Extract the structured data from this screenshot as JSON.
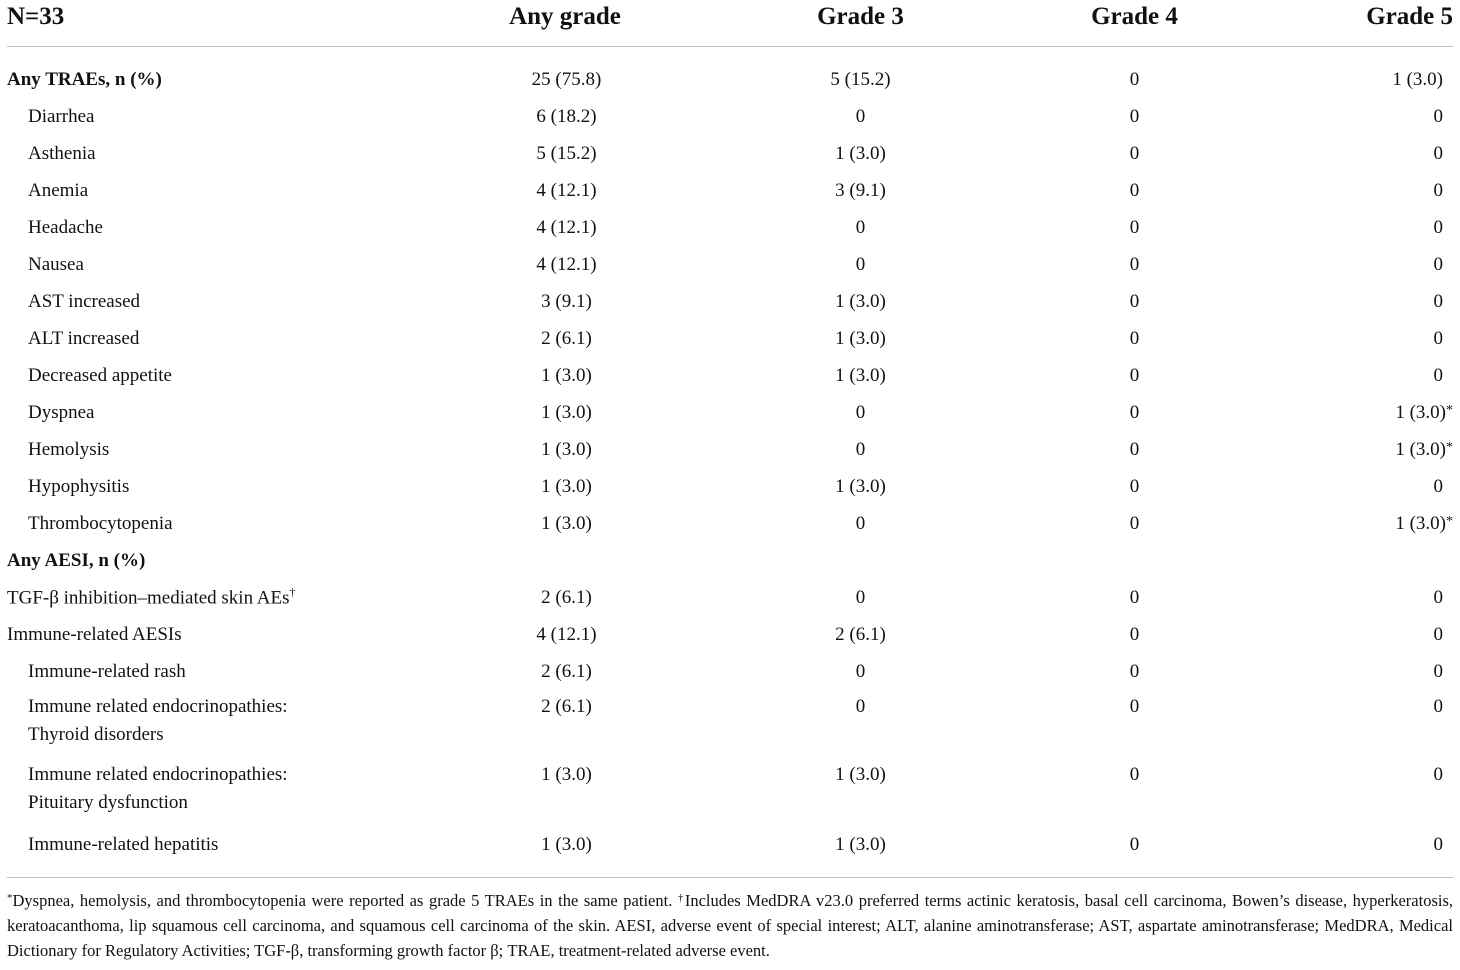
{
  "header": {
    "n_label": "N=33",
    "any_grade": "Any grade",
    "grade3": "Grade 3",
    "grade4": "Grade 4",
    "grade5": "Grade 5"
  },
  "rows": [
    {
      "label": "Any TRAEs, n (%)",
      "any": "25 (75.8)",
      "g3": "5 (15.2)",
      "g4": "0",
      "g5": "1 (3.0)"
    },
    {
      "label": "Diarrhea",
      "any": "6 (18.2)",
      "g3": "0",
      "g4": "0",
      "g5": "0"
    },
    {
      "label": "Asthenia",
      "any": "5 (15.2)",
      "g3": "1 (3.0)",
      "g4": "0",
      "g5": "0"
    },
    {
      "label": "Anemia",
      "any": "4 (12.1)",
      "g3": "3 (9.1)",
      "g4": "0",
      "g5": "0"
    },
    {
      "label": "Headache",
      "any": "4 (12.1)",
      "g3": "0",
      "g4": "0",
      "g5": "0"
    },
    {
      "label": "Nausea",
      "any": "4 (12.1)",
      "g3": "0",
      "g4": "0",
      "g5": "0"
    },
    {
      "label": "AST increased",
      "any": "3 (9.1)",
      "g3": "1 (3.0)",
      "g4": "0",
      "g5": "0"
    },
    {
      "label": "ALT increased",
      "any": "2 (6.1)",
      "g3": "1 (3.0)",
      "g4": "0",
      "g5": "0"
    },
    {
      "label": "Decreased appetite",
      "any": "1 (3.0)",
      "g3": "1 (3.0)",
      "g4": "0",
      "g5": "0"
    },
    {
      "label": "Dyspnea",
      "any": "1 (3.0)",
      "g3": "0",
      "g4": "0",
      "g5": "1 (3.0)",
      "g5_mark": "*"
    },
    {
      "label": "Hemolysis",
      "any": "1 (3.0)",
      "g3": "0",
      "g4": "0",
      "g5": "1 (3.0)",
      "g5_mark": "*"
    },
    {
      "label": "Hypophysitis",
      "any": "1 (3.0)",
      "g3": "1 (3.0)",
      "g4": "0",
      "g5": "0"
    },
    {
      "label": "Thrombocytopenia",
      "any": "1 (3.0)",
      "g3": "0",
      "g4": "0",
      "g5": "1 (3.0)",
      "g5_mark": "*"
    },
    {
      "label": "Any AESI, n (%)",
      "any": "",
      "g3": "",
      "g4": "",
      "g5": ""
    },
    {
      "label": "TGF-β inhibition–mediated skin AEs",
      "label_mark": "†",
      "any": "2 (6.1)",
      "g3": "0",
      "g4": "0",
      "g5": "0"
    },
    {
      "label": "Immune-related AESIs",
      "any": "4 (12.1)",
      "g3": "2 (6.1)",
      "g4": "0",
      "g5": "0"
    },
    {
      "label": "Immune-related rash",
      "any": "2 (6.1)",
      "g3": "0",
      "g4": "0",
      "g5": "0"
    },
    {
      "label_line1": "Immune related endocrinopathies:",
      "label_line2": "Thyroid disorders",
      "any": "2 (6.1)",
      "g3": "0",
      "g4": "0",
      "g5": "0"
    },
    {
      "label_line1": "Immune related endocrinopathies:",
      "label_line2": "Pituitary dysfunction",
      "any": "1 (3.0)",
      "g3": "1 (3.0)",
      "g4": "0",
      "g5": "0"
    },
    {
      "label": "Immune-related hepatitis",
      "any": "1 (3.0)",
      "g3": "1 (3.0)",
      "g4": "0",
      "g5": "0"
    }
  ],
  "footnote": {
    "star_mark": "*",
    "star_text": "Dyspnea, hemolysis, and thrombocytopenia were reported as grade 5 TRAEs in the same patient.",
    "dagger_mark": "†",
    "dagger_text": "Includes MedDRA v23.0 preferred terms actinic keratosis, basal cell carcinoma, Bowen’s disease, hyperkeratosis, keratoacanthoma, lip squamous cell carcinoma, and squamous cell carcinoma of the skin. AESI, adverse event of special interest; ALT, alanine aminotransferase; AST, aspartate aminotransferase; MedDRA, Medical Dictionary for Regulatory Activities; TGF-β, transforming growth factor β; TRAE, treatment-related adverse event."
  }
}
